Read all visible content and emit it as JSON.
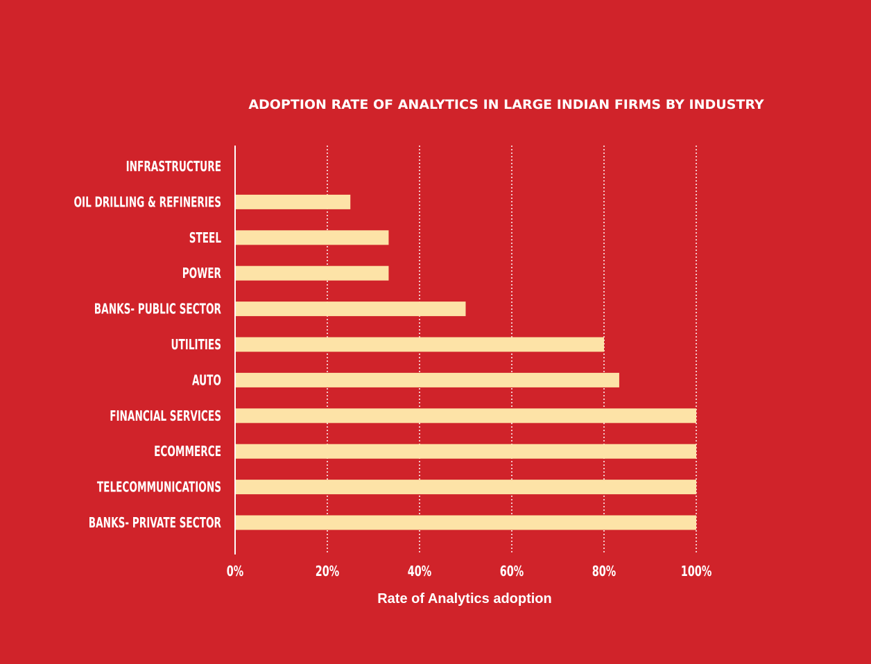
{
  "chart_data": {
    "type": "bar",
    "orientation": "horizontal",
    "title": "ADOPTION RATE OF ANALYTICS IN LARGE INDIAN FIRMS BY INDUSTRY",
    "xlabel": "Rate of Analytics adoption",
    "ylabel": "",
    "categories": [
      "INFRASTRUCTURE",
      "OIL DRILLING & REFINERIES",
      "STEEL",
      "POWER",
      "BANKS- PUBLIC SECTOR",
      "UTILITIES",
      "AUTO",
      "FINANCIAL SERVICES",
      "ECOMMERCE",
      "TELECOMMUNICATIONS",
      "BANKS- PRIVATE SECTOR"
    ],
    "values": [
      0,
      25,
      33.3,
      33.3,
      50,
      80,
      83.3,
      100,
      100,
      100,
      100
    ],
    "xlim": [
      0,
      100
    ],
    "x_ticks": [
      0,
      20,
      40,
      60,
      80,
      100
    ],
    "x_tick_labels": [
      "0%",
      "20%",
      "40%",
      "60%",
      "80%",
      "100%"
    ],
    "grid": "vertical dotted",
    "legend": "none",
    "colors": {
      "background": "#d0232a",
      "bar": "#fde3a7",
      "text": "#ffffff",
      "axis": "#ffffff",
      "grid": "#ffffff"
    }
  }
}
